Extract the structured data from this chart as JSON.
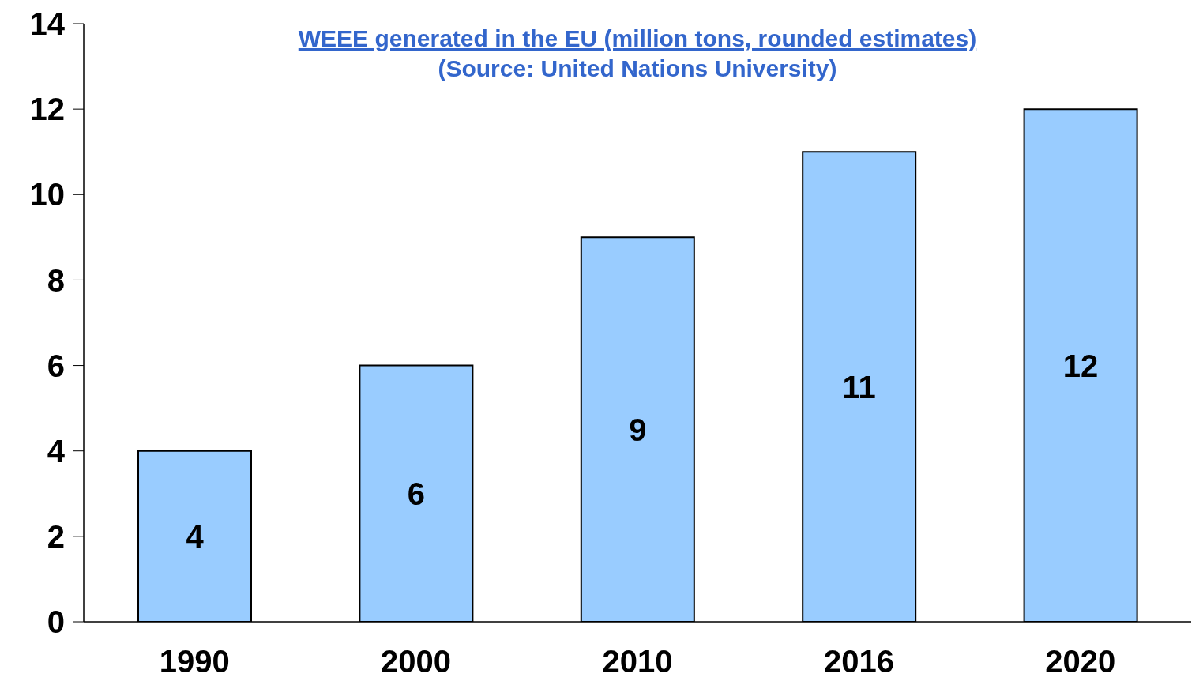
{
  "chart_data": {
    "type": "bar",
    "title": "WEEE generated in the EU (million tons, rounded estimates)",
    "subtitle": "(Source: United Nations University)",
    "categories": [
      "1990",
      "2000",
      "2010",
      "2016",
      "2020"
    ],
    "values": [
      4,
      6,
      9,
      11,
      12
    ],
    "color": "#99ccff",
    "ylim": [
      0,
      14
    ],
    "yticks": [
      0,
      2,
      4,
      6,
      8,
      10,
      12,
      14
    ],
    "grid": false,
    "data_labels": true
  }
}
